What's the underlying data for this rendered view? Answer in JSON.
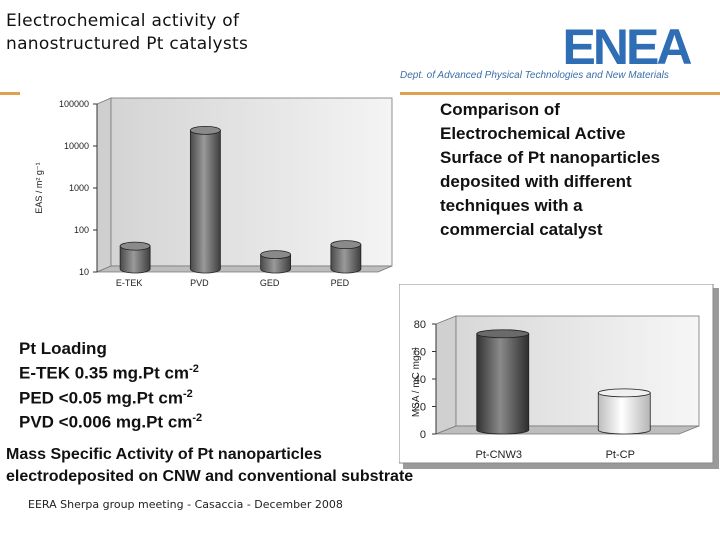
{
  "slide": {
    "title": "Electrochemical activity  of\nnanostructured  Pt catalysts",
    "logo_text": "ENEA",
    "department": "Dept. of Advanced Physical Technologies and New Materials",
    "comparison_text": "Comparison  of\nElectrochemical  Active\nSurface of Pt nanoparticles\ndeposited with different\ntechniques with a\ncommercial catalyst",
    "loading": {
      "heading": "Pt Loading",
      "lines": [
        {
          "text": "E-TEK 0.35 mg.Pt cm",
          "exp": "-2"
        },
        {
          "text": "PED  <0.05 mg.Pt cm",
          "exp": "-2"
        },
        {
          "text": "PVD  <0.006 mg.Pt cm",
          "exp": "-2"
        }
      ]
    },
    "mass_text": "Mass Specific Activity of Pt nanoparticles\nelectrodeposited on CNW and conventional substrate",
    "footer": "EERA Sherpa group meeting - Casaccia - December 2008",
    "colors": {
      "accent_bar": "#e0a050",
      "logo_blue": "#2f6db5",
      "dept_blue": "#3a6ea8",
      "bar_dark": "#6a6a6a",
      "bar_light": "#f0f0f0"
    }
  },
  "chart_data": [
    {
      "type": "bar",
      "title": "",
      "ylabel": "EAS / m² g⁻¹",
      "xlabel": "",
      "yscale": "log",
      "ylim": [
        10,
        100000
      ],
      "yticks": [
        "10",
        "100",
        "1000",
        "10000",
        "100000"
      ],
      "categories": [
        "E-TEK",
        "PVD",
        "GED",
        "PED"
      ],
      "values": [
        35,
        20000,
        22,
        38
      ]
    },
    {
      "type": "bar",
      "title": "",
      "ylabel": "MSA / mC mg⁻¹",
      "xlabel": "",
      "ylim": [
        0,
        80
      ],
      "yticks": [
        "0",
        "20",
        "40",
        "60",
        "80"
      ],
      "categories": [
        "Pt-CNW3",
        "Pt-CP"
      ],
      "values": [
        70,
        27
      ]
    }
  ]
}
